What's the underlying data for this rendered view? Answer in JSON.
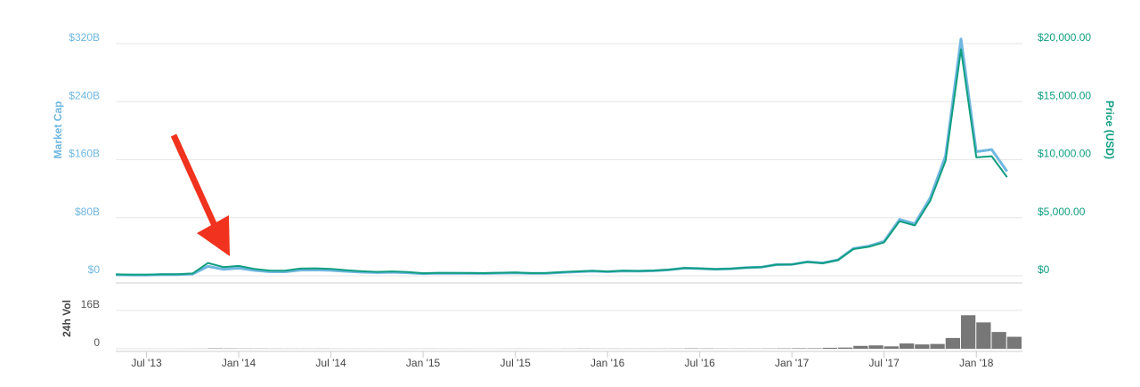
{
  "chart_data": [
    {
      "type": "line",
      "x": [
        "2013-05",
        "2013-06",
        "2013-07",
        "2013-08",
        "2013-09",
        "2013-10",
        "2013-11",
        "2013-12",
        "2014-01",
        "2014-02",
        "2014-03",
        "2014-04",
        "2014-05",
        "2014-06",
        "2014-07",
        "2014-08",
        "2014-09",
        "2014-10",
        "2014-11",
        "2014-12",
        "2015-01",
        "2015-02",
        "2015-03",
        "2015-04",
        "2015-05",
        "2015-06",
        "2015-07",
        "2015-08",
        "2015-09",
        "2015-10",
        "2015-11",
        "2015-12",
        "2016-01",
        "2016-02",
        "2016-03",
        "2016-04",
        "2016-05",
        "2016-06",
        "2016-07",
        "2016-08",
        "2016-09",
        "2016-10",
        "2016-11",
        "2016-12",
        "2017-01",
        "2017-02",
        "2017-03",
        "2017-04",
        "2017-05",
        "2017-06",
        "2017-07",
        "2017-08",
        "2017-09",
        "2017-10",
        "2017-11",
        "2017-12",
        "2018-01",
        "2018-02",
        "2018-03"
      ],
      "xlim": [
        "2013-05",
        "2018-04"
      ],
      "ylabel": "Market Cap",
      "y2label": "Price (USD)",
      "ylim": [
        0,
        320
      ],
      "yticks": [
        {
          "value": 0,
          "label": "$0"
        },
        {
          "value": 80,
          "label": "$80B"
        },
        {
          "value": 160,
          "label": "$160B"
        },
        {
          "value": 240,
          "label": "$240B"
        },
        {
          "value": 320,
          "label": "$320B"
        }
      ],
      "y2lim": [
        0,
        20000
      ],
      "y2ticks": [
        {
          "value": 0,
          "label": "$0"
        },
        {
          "value": 5000,
          "label": "$5,000.00"
        },
        {
          "value": 10000,
          "label": "$10,000.00"
        },
        {
          "value": 15000,
          "label": "$15,000.00"
        },
        {
          "value": 20000,
          "label": "$20,000.00"
        }
      ],
      "grid": true,
      "series": [
        {
          "name": "Market Cap",
          "color": "#6fb7e0",
          "values": [
            1.3,
            1.1,
            1.1,
            1.5,
            1.6,
            2.4,
            13,
            9,
            10.6,
            7.5,
            5.6,
            5.5,
            7.8,
            8.1,
            7.5,
            6.1,
            5.0,
            4.4,
            4.9,
            4.2,
            3.0,
            3.5,
            3.4,
            3.3,
            3.2,
            3.7,
            4.1,
            3.3,
            3.4,
            4.6,
            5.5,
            6.5,
            5.6,
            6.6,
            6.4,
            6.9,
            8.2,
            10.6,
            9.9,
            9.1,
            9.7,
            11.1,
            11.9,
            15.4,
            15.7,
            19.3,
            17.6,
            22.0,
            37.6,
            41.0,
            47.4,
            77.6,
            71.9,
            107.5,
            165.3,
            326.5,
            171,
            174,
            144
          ]
        },
        {
          "name": "Price (USD)",
          "color": "#109e80",
          "axis": "y2",
          "values": [
            120,
            100,
            95,
            130,
            135,
            200,
            1100,
            750,
            850,
            600,
            450,
            440,
            620,
            640,
            590,
            480,
            390,
            340,
            375,
            320,
            220,
            255,
            245,
            235,
            230,
            260,
            285,
            230,
            236,
            315,
            375,
            430,
            370,
            435,
            415,
            450,
            530,
            670,
            625,
            575,
            610,
            700,
            745,
            960,
            970,
            1190,
            1080,
            1350,
            2300,
            2500,
            2880,
            4700,
            4340,
            6470,
            9900,
            19500,
            10200,
            10300,
            8500
          ]
        }
      ]
    },
    {
      "type": "bar",
      "x": [
        "2013-05",
        "2013-06",
        "2013-07",
        "2013-08",
        "2013-09",
        "2013-10",
        "2013-11",
        "2013-12",
        "2014-01",
        "2014-02",
        "2014-03",
        "2014-04",
        "2014-05",
        "2014-06",
        "2014-07",
        "2014-08",
        "2014-09",
        "2014-10",
        "2014-11",
        "2014-12",
        "2015-01",
        "2015-02",
        "2015-03",
        "2015-04",
        "2015-05",
        "2015-06",
        "2015-07",
        "2015-08",
        "2015-09",
        "2015-10",
        "2015-11",
        "2015-12",
        "2016-01",
        "2016-02",
        "2016-03",
        "2016-04",
        "2016-05",
        "2016-06",
        "2016-07",
        "2016-08",
        "2016-09",
        "2016-10",
        "2016-11",
        "2016-12",
        "2017-01",
        "2017-02",
        "2017-03",
        "2017-04",
        "2017-05",
        "2017-06",
        "2017-07",
        "2017-08",
        "2017-09",
        "2017-10",
        "2017-11",
        "2017-12",
        "2018-01",
        "2018-02",
        "2018-03"
      ],
      "xlim": [
        "2013-05",
        "2018-04"
      ],
      "xticks": [
        {
          "value": "2013-07",
          "label": "Jul '13"
        },
        {
          "value": "2014-01",
          "label": "Jan '14"
        },
        {
          "value": "2014-07",
          "label": "Jul '14"
        },
        {
          "value": "2015-01",
          "label": "Jan '15"
        },
        {
          "value": "2015-07",
          "label": "Jul '15"
        },
        {
          "value": "2016-01",
          "label": "Jan '16"
        },
        {
          "value": "2016-07",
          "label": "Jul '16"
        },
        {
          "value": "2017-01",
          "label": "Jan '17"
        },
        {
          "value": "2017-07",
          "label": "Jul '17"
        },
        {
          "value": "2018-01",
          "label": "Jan '18"
        }
      ],
      "ylabel": "24h Vol",
      "ylim": [
        0,
        26
      ],
      "yticks": [
        0,
        {
          "value": 16,
          "label": "16B"
        }
      ],
      "color": "#777777",
      "values": [
        0.02,
        0.02,
        0.02,
        0.02,
        0.03,
        0.04,
        0.15,
        0.1,
        0.08,
        0.07,
        0.05,
        0.04,
        0.04,
        0.05,
        0.03,
        0.03,
        0.03,
        0.03,
        0.03,
        0.03,
        0.04,
        0.03,
        0.03,
        0.02,
        0.02,
        0.03,
        0.04,
        0.03,
        0.02,
        0.04,
        0.07,
        0.05,
        0.05,
        0.05,
        0.06,
        0.06,
        0.08,
        0.15,
        0.1,
        0.07,
        0.07,
        0.08,
        0.1,
        0.15,
        0.2,
        0.2,
        0.4,
        0.5,
        1.2,
        1.4,
        1.0,
        2.2,
        1.8,
        2.0,
        4.5,
        14,
        11,
        7,
        5
      ]
    }
  ]
}
